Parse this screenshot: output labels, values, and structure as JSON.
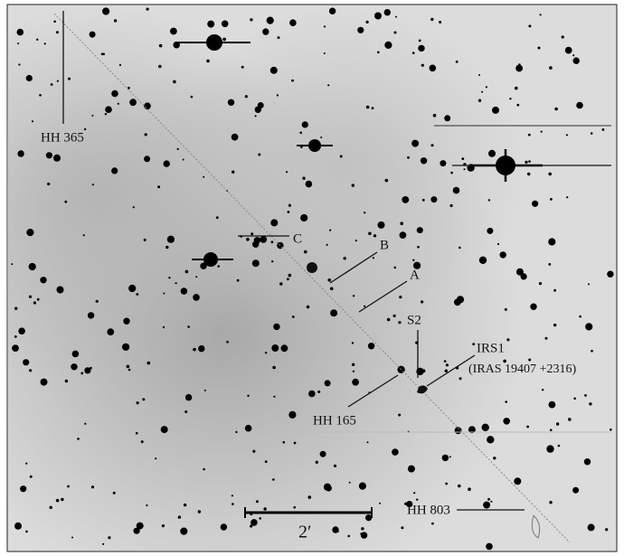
{
  "labels": {
    "hh365": "HH 365",
    "c": "C",
    "b": "B",
    "a": "A",
    "s2": "S2",
    "irs1": "IRS1",
    "iras": "(IRAS 19407 +2316)",
    "hh165": "HH 165",
    "hh803": "HH 803"
  },
  "scale_bar": "2′"
}
